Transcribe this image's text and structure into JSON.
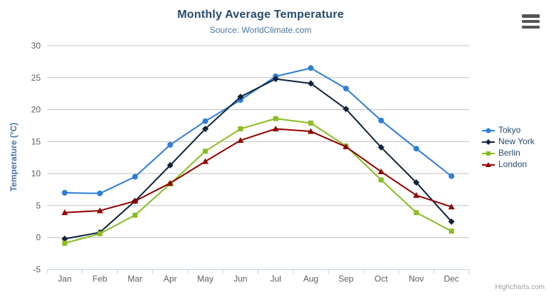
{
  "header": {
    "title": "Monthly Average Temperature",
    "subtitle": "Source: WorldClimate.com"
  },
  "credit_label": "Highcharts.com",
  "chart_data": {
    "type": "line",
    "title": "Monthly Average Temperature",
    "subtitle": "Source: WorldClimate.com",
    "categories": [
      "Jan",
      "Feb",
      "Mar",
      "Apr",
      "May",
      "Jun",
      "Jul",
      "Aug",
      "Sep",
      "Oct",
      "Nov",
      "Dec"
    ],
    "series": [
      {
        "name": "Tokyo",
        "color": "#2f7ed8",
        "marker": "circle",
        "values": [
          7.0,
          6.9,
          9.5,
          14.5,
          18.2,
          21.5,
          25.2,
          26.5,
          23.3,
          18.3,
          13.9,
          9.6
        ]
      },
      {
        "name": "New York",
        "color": "#0d233a",
        "marker": "diamond",
        "values": [
          -0.2,
          0.8,
          5.7,
          11.3,
          17.0,
          22.0,
          24.8,
          24.1,
          20.1,
          14.1,
          8.6,
          2.5
        ]
      },
      {
        "name": "Berlin",
        "color": "#8bbc21",
        "marker": "square",
        "values": [
          -0.9,
          0.6,
          3.5,
          8.4,
          13.5,
          17.0,
          18.6,
          17.9,
          14.3,
          9.0,
          3.9,
          1.0
        ]
      },
      {
        "name": "London",
        "color": "#910000",
        "marker": "triangle",
        "values": [
          3.9,
          4.2,
          5.7,
          8.5,
          11.9,
          15.2,
          17.0,
          16.6,
          14.2,
          10.3,
          6.6,
          4.8
        ]
      }
    ],
    "xlabel": "",
    "ylabel": "Temperature (°C)",
    "ylim": [
      -5,
      30
    ],
    "yticks": [
      -5,
      0,
      5,
      10,
      15,
      20,
      25,
      30
    ],
    "grid": true,
    "legend_position": "right",
    "colors": {
      "grid_line": "#c0c0c0",
      "axis_line": "#c0d0e0",
      "tick_label": "#606060",
      "title": "#274b6d",
      "subtitle": "#4d759e",
      "axis_title": "#4572a7",
      "legend_text": "#274b6d",
      "menu_icon": "#545454",
      "credit": "#a0a0a0"
    }
  }
}
